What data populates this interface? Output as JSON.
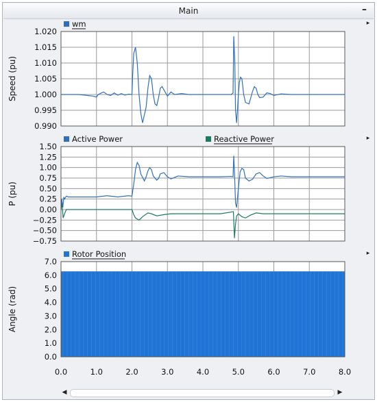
{
  "window": {
    "title": "Main",
    "minimize_glyph": "–",
    "expand_glyph": "▸"
  },
  "x_axis": {
    "min": 0,
    "max": 8,
    "ticks": [
      "0.0",
      "1.0",
      "2.0",
      "3.0",
      "4.0",
      "5.0",
      "6.0",
      "7.0",
      "8.0"
    ]
  },
  "chart_data": [
    {
      "type": "line",
      "ylabel": "Speed (pu)",
      "ylim": [
        0.99,
        1.02
      ],
      "yticks": [
        "1.020",
        "1.015",
        "1.010",
        "1.005",
        "1.000",
        "0.995",
        "0.990"
      ],
      "grid": true,
      "legend_position": "top-left",
      "series": [
        {
          "name": "wm",
          "color": "#2f6fbd",
          "x": [
            0.0,
            0.5,
            0.9,
            1.0,
            1.05,
            1.2,
            1.3,
            1.4,
            1.5,
            1.6,
            1.7,
            1.8,
            1.9,
            2.0,
            2.02,
            2.05,
            2.1,
            2.15,
            2.2,
            2.25,
            2.3,
            2.4,
            2.45,
            2.5,
            2.55,
            2.6,
            2.65,
            2.7,
            2.75,
            2.8,
            2.85,
            2.9,
            3.0,
            3.1,
            3.2,
            3.4,
            3.6,
            4.0,
            4.8,
            4.85,
            4.87,
            4.9,
            4.92,
            4.95,
            4.98,
            5.0,
            5.03,
            5.06,
            5.1,
            5.15,
            5.2,
            5.3,
            5.35,
            5.4,
            5.45,
            5.5,
            5.55,
            5.6,
            5.7,
            5.8,
            5.9,
            6.0,
            6.2,
            6.5,
            7.0,
            8.0
          ],
          "y": [
            1.0,
            1.0,
            0.9995,
            0.9992,
            1.0,
            1.0008,
            1.0,
            0.9997,
            1.0005,
            0.9998,
            1.0003,
            0.9998,
            1.0001,
            1.0,
            1.006,
            1.013,
            1.015,
            1.01,
            1.0,
            0.994,
            0.991,
            0.996,
            1.002,
            1.006,
            1.005,
            1.0,
            0.997,
            0.9965,
            0.999,
            1.002,
            1.0025,
            1.0015,
            0.9995,
            1.0008,
            1.0,
            1.0003,
            1.0,
            1.0,
            1.0,
            1.0005,
            1.0185,
            1.01,
            0.995,
            0.991,
            0.996,
            1.0,
            1.004,
            1.0055,
            1.005,
            1.0,
            0.9975,
            0.997,
            0.999,
            1.001,
            1.0025,
            1.002,
            1.0,
            0.999,
            0.9992,
            1.0005,
            1.0003,
            0.9997,
            1.0002,
            1.0,
            1.0,
            1.0
          ]
        }
      ]
    },
    {
      "type": "line",
      "ylabel": "P (pu)",
      "ylim": [
        -0.75,
        1.5
      ],
      "yticks": [
        "1.50",
        "1.25",
        "1.00",
        "0.75",
        "0.50",
        "0.25",
        "0.00",
        "−0.25",
        "−0.50",
        "−0.75"
      ],
      "grid": true,
      "legend_position": "top",
      "series": [
        {
          "name": "Active Power",
          "color": "#2f6fbd",
          "x": [
            0.0,
            0.02,
            0.05,
            0.08,
            0.1,
            0.15,
            0.2,
            0.5,
            1.0,
            1.3,
            1.6,
            1.9,
            2.0,
            2.05,
            2.1,
            2.15,
            2.2,
            2.25,
            2.35,
            2.4,
            2.45,
            2.5,
            2.55,
            2.6,
            2.7,
            2.75,
            2.8,
            2.9,
            3.0,
            3.1,
            3.3,
            3.6,
            4.0,
            4.5,
            4.8,
            4.85,
            4.87,
            4.89,
            4.92,
            4.95,
            5.0,
            5.05,
            5.1,
            5.15,
            5.2,
            5.3,
            5.4,
            5.5,
            5.6,
            5.7,
            5.8,
            6.0,
            6.2,
            6.5,
            7.0,
            8.0
          ],
          "y": [
            0.0,
            0.25,
            0.05,
            0.3,
            0.25,
            0.32,
            0.3,
            0.3,
            0.3,
            0.33,
            0.3,
            0.33,
            0.32,
            0.6,
            0.95,
            1.12,
            1.05,
            0.85,
            0.68,
            0.78,
            0.92,
            1.0,
            0.95,
            0.8,
            0.7,
            0.74,
            0.85,
            0.88,
            0.78,
            0.73,
            0.8,
            0.78,
            0.78,
            0.78,
            0.79,
            0.78,
            1.28,
            0.9,
            0.15,
            0.05,
            0.5,
            0.9,
            0.98,
            0.95,
            0.75,
            0.68,
            0.72,
            0.85,
            0.88,
            0.8,
            0.74,
            0.78,
            0.8,
            0.78,
            0.78,
            0.78
          ]
        },
        {
          "name": "Reactive Power",
          "color": "#1c7a63",
          "x": [
            0.0,
            0.03,
            0.06,
            0.1,
            0.15,
            0.2,
            0.5,
            1.0,
            1.5,
            2.0,
            2.05,
            2.1,
            2.2,
            2.3,
            2.45,
            2.55,
            2.7,
            2.9,
            3.1,
            3.4,
            3.8,
            4.5,
            4.86,
            4.89,
            4.92,
            4.95,
            5.0,
            5.1,
            5.2,
            5.35,
            5.5,
            5.7,
            6.0,
            6.5,
            7.0,
            8.0
          ],
          "y": [
            0.0,
            0.15,
            -0.2,
            -0.1,
            0.0,
            0.0,
            0.0,
            0.0,
            0.0,
            0.0,
            -0.12,
            -0.2,
            -0.25,
            -0.17,
            -0.08,
            -0.1,
            -0.15,
            -0.12,
            -0.1,
            -0.1,
            -0.1,
            -0.1,
            -0.05,
            -0.68,
            -0.35,
            -0.15,
            -0.1,
            -0.17,
            -0.2,
            -0.13,
            -0.08,
            -0.1,
            -0.1,
            -0.1,
            -0.1,
            -0.1
          ]
        }
      ]
    },
    {
      "type": "area",
      "ylabel": "Angle (rad)",
      "ylim": [
        0.0,
        7.0
      ],
      "yticks": [
        "7.0",
        "6.0",
        "5.0",
        "4.0",
        "3.0",
        "2.0",
        "1.0",
        "0.0"
      ],
      "grid": true,
      "legend_position": "top-left",
      "series": [
        {
          "name": "Rotor Position",
          "color": "#1f74d6",
          "x": [
            0.0,
            8.0
          ],
          "ymin": [
            0.0,
            0.0
          ],
          "ymax": [
            6.28,
            6.28
          ]
        }
      ]
    }
  ]
}
